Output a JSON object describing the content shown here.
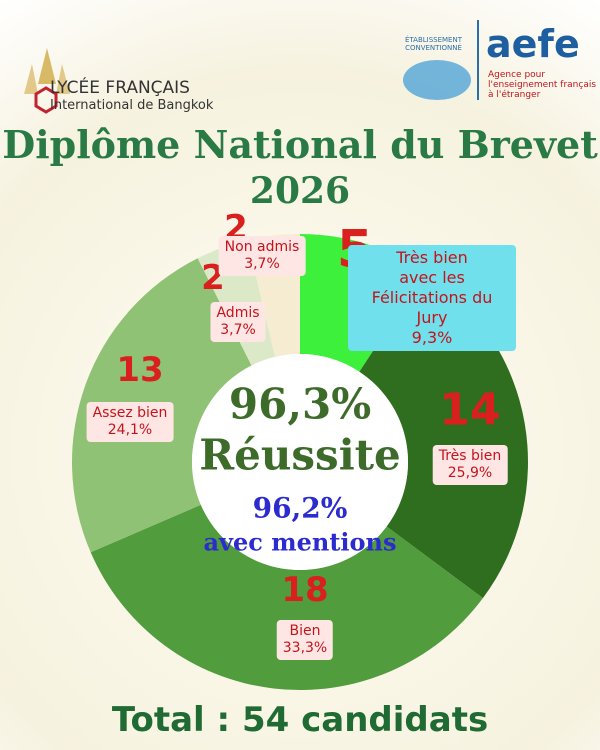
{
  "header": {
    "school_line1": "LYCÉE FRANÇAIS",
    "school_line2": "International de Bangkok",
    "aefe_tag": "ÉTABLISSEMENT\nCONVENTIONNÉ",
    "aefe_logo": "aefe",
    "aefe_desc": "Agence pour\nl'enseignement français\nà l'étranger"
  },
  "chart_data": {
    "type": "donut",
    "title": "Diplôme National du Brevet",
    "subtitle": "2026",
    "categories": [
      "Très bien\navec les Félicitations du Jury",
      "Très bien",
      "Bien",
      "Assez bien",
      "Admis",
      "Non admis"
    ],
    "values": [
      5,
      14,
      18,
      13,
      2,
      2
    ],
    "shares": [
      9.3,
      25.9,
      33.3,
      24.1,
      3.7,
      3.7
    ],
    "share_labels": [
      "9,3%",
      "25,9%",
      "33,3%",
      "24,1%",
      "3,7%",
      "3,7%"
    ],
    "colors": [
      "#3cf03c",
      "#2f6e1f",
      "#519c3c",
      "#8fc274",
      "#dbe9c9",
      "#f5ecd2"
    ],
    "center": {
      "rate": "96,3%",
      "rate_label": "Réussite",
      "mentions": "96,2%",
      "mentions_label": "avec mentions"
    },
    "footer": "Total : 54 candidats"
  }
}
